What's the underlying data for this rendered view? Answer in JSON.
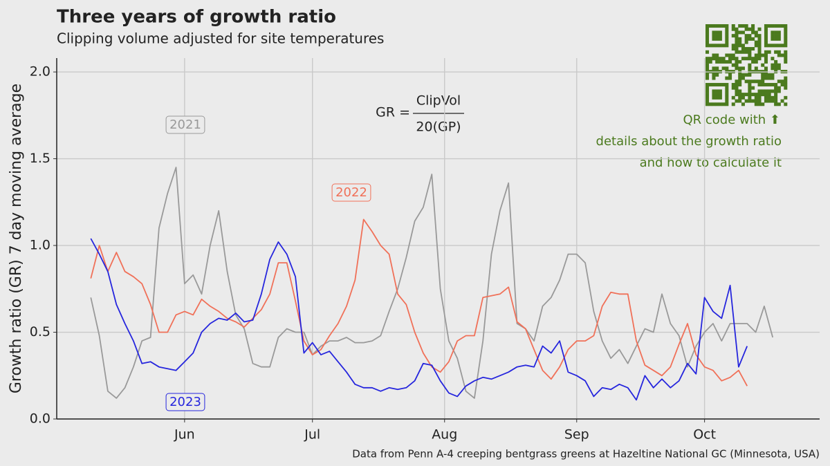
{
  "chart_data": {
    "type": "line",
    "title": "Three years of growth ratio",
    "subtitle": "Clipping volume adjusted for site temperatures",
    "y_label": "Growth ratio (GR) 7 day moving average",
    "caption": "Data from Penn A-4 creeping bentgrass greens at Hazeltine National GC (Minnesota, USA)",
    "formula": {
      "lhs": "GR =",
      "numerator": "ClipVol",
      "denominator": "20(GP)"
    },
    "qr_note": [
      "QR code with ⬆",
      "details about the growth ratio",
      "and how to calculate it"
    ],
    "x": [
      130,
      132,
      134,
      136,
      138,
      140,
      142,
      144,
      146,
      148,
      150,
      152,
      154,
      156,
      158,
      160,
      162,
      164,
      166,
      168,
      170,
      172,
      174,
      176,
      178,
      180,
      182,
      184,
      186,
      188,
      190,
      192,
      194,
      196,
      198,
      200,
      202,
      204,
      206,
      208,
      210,
      212,
      214,
      216,
      218,
      220,
      222,
      224,
      226,
      228,
      230,
      232,
      234,
      236,
      238,
      240,
      242,
      244,
      246,
      248,
      250,
      252,
      254,
      256,
      258,
      260,
      262,
      264,
      266,
      268,
      270,
      272,
      274,
      276,
      278,
      280,
      282,
      284,
      286,
      288,
      290
    ],
    "xlim": [
      122,
      301
    ],
    "xticks": [
      {
        "value": 152,
        "label": "Jun"
      },
      {
        "value": 182,
        "label": "Jul"
      },
      {
        "value": 213,
        "label": "Aug"
      },
      {
        "value": 244,
        "label": "Sep"
      },
      {
        "value": 274,
        "label": "Oct"
      }
    ],
    "ylim": [
      0,
      2.08
    ],
    "yticks": [
      {
        "value": 0,
        "label": "0.0"
      },
      0.5,
      {
        "value": 1,
        "label": "1.0"
      },
      1.5,
      {
        "value": 2,
        "label": "2.0"
      }
    ],
    "grid": true,
    "series": [
      {
        "name": "2021",
        "color": "#999999",
        "values": [
          0.7,
          0.48,
          0.16,
          0.12,
          0.18,
          0.3,
          0.45,
          0.47,
          1.1,
          1.3,
          1.45,
          0.78,
          0.83,
          0.72,
          1.0,
          1.2,
          0.85,
          0.6,
          0.52,
          0.32,
          0.3,
          0.3,
          0.47,
          0.52,
          0.5,
          0.5,
          0.37,
          0.42,
          0.45,
          0.45,
          0.47,
          0.44,
          0.44,
          0.45,
          0.48,
          0.62,
          0.75,
          0.93,
          1.14,
          1.22,
          1.41,
          0.75,
          0.45,
          0.35,
          0.16,
          0.12,
          0.45,
          0.95,
          1.2,
          1.36,
          0.55,
          0.52,
          0.45,
          0.65,
          0.7,
          0.8,
          0.95,
          0.95,
          0.9,
          0.62,
          0.45,
          0.35,
          0.4,
          0.32,
          0.42,
          0.52,
          0.5,
          0.72,
          0.55,
          0.48,
          0.3,
          0.42,
          0.5,
          0.55,
          0.45,
          0.55,
          0.55,
          0.55,
          0.5,
          0.65,
          0.47
        ]
      },
      {
        "name": "2022",
        "color": "#f07058",
        "values": [
          0.81,
          1.0,
          0.85,
          0.96,
          0.85,
          0.82,
          0.78,
          0.66,
          0.5,
          0.5,
          0.6,
          0.62,
          0.6,
          0.69,
          0.65,
          0.62,
          0.58,
          0.56,
          0.53,
          0.58,
          0.63,
          0.72,
          0.9,
          0.9,
          0.68,
          0.45,
          0.37,
          0.4,
          0.48,
          0.55,
          0.65,
          0.8,
          1.15,
          1.08,
          1.0,
          0.95,
          0.72,
          0.66,
          0.5,
          0.38,
          0.3,
          0.27,
          0.33,
          0.45,
          0.48,
          0.48,
          0.7,
          0.71,
          0.72,
          0.76,
          0.56,
          0.52,
          0.4,
          0.28,
          0.23,
          0.3,
          0.4,
          0.45,
          0.45,
          0.48,
          0.65,
          0.73,
          0.72,
          0.72,
          0.45,
          0.31,
          0.28,
          0.25,
          0.3,
          0.43,
          0.55,
          0.37,
          0.3,
          0.28,
          0.22,
          0.24,
          0.28,
          0.19,
          null,
          null,
          null
        ]
      },
      {
        "name": "2023",
        "color": "#2525dd",
        "values": [
          1.04,
          0.95,
          0.85,
          0.66,
          0.55,
          0.45,
          0.32,
          0.33,
          0.3,
          0.29,
          0.28,
          0.33,
          0.38,
          0.5,
          0.55,
          0.58,
          0.57,
          0.61,
          0.56,
          0.57,
          0.72,
          0.92,
          1.02,
          0.95,
          0.82,
          0.38,
          0.44,
          0.37,
          0.39,
          0.33,
          0.27,
          0.2,
          0.18,
          0.18,
          0.16,
          0.18,
          0.17,
          0.18,
          0.22,
          0.32,
          0.31,
          0.22,
          0.15,
          0.13,
          0.19,
          0.22,
          0.24,
          0.23,
          0.25,
          0.27,
          0.3,
          0.31,
          0.3,
          0.42,
          0.38,
          0.45,
          0.27,
          0.25,
          0.22,
          0.13,
          0.18,
          0.17,
          0.2,
          0.18,
          0.11,
          0.25,
          0.18,
          0.23,
          0.18,
          0.22,
          0.32,
          0.26,
          0.7,
          0.62,
          0.58,
          0.77,
          0.3,
          0.42,
          null,
          null,
          null
        ]
      }
    ]
  }
}
